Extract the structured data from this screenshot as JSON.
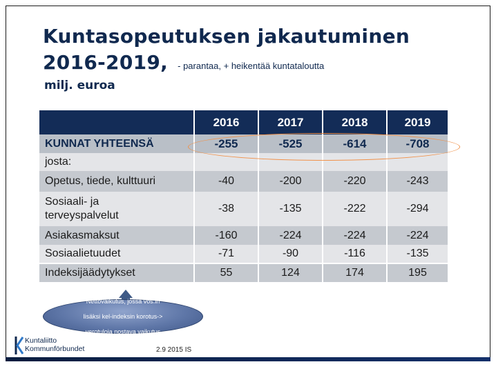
{
  "title": {
    "line1": "Kuntasopeutuksen jakautuminen",
    "line2": "2016-2019,",
    "subtitle": "- parantaa, + heikentää kuntataloutta"
  },
  "unit": "milj. euroa",
  "table": {
    "years": [
      "2016",
      "2017",
      "2018",
      "2019"
    ],
    "rows": [
      {
        "label": "KUNNAT YHTEENSÄ",
        "values": [
          "-255",
          "-525",
          "-614",
          "-708"
        ]
      },
      {
        "label": "josta:",
        "values": [
          "",
          "",
          "",
          ""
        ]
      },
      {
        "label": "Opetus, tiede, kulttuuri",
        "values": [
          "-40",
          "-200",
          "-220",
          "-243"
        ]
      },
      {
        "label_line1": "Sosiaali- ja",
        "label_line2": "terveyspalvelut",
        "values": [
          "-38",
          "-135",
          "-222",
          "-294"
        ]
      },
      {
        "label": "Asiakasmaksut",
        "values": [
          "-160",
          "-224",
          "-224",
          "-224"
        ]
      },
      {
        "label": "Sosiaalietuudet",
        "values": [
          "-71",
          "-90",
          "-116",
          "-135"
        ]
      },
      {
        "label": "Indeksijäädytykset",
        "values": [
          "55",
          "124",
          "174",
          "195"
        ]
      }
    ]
  },
  "note": {
    "line1": "Nettovaikutus, jossa vos:in",
    "line2": "lisäksi kel-indeksin korotus->",
    "line3": "verotuloja nostava vaikutus"
  },
  "logo": {
    "line1": "Kuntaliitto",
    "line2": "Kommunförbundet"
  },
  "date": "2.9 2015 IS",
  "colors": {
    "header": "#132c57",
    "title": "#10294f",
    "highlight_oval": "#f0914a",
    "row_dark": "#c5c9cf",
    "row_light": "#e4e5e8"
  }
}
